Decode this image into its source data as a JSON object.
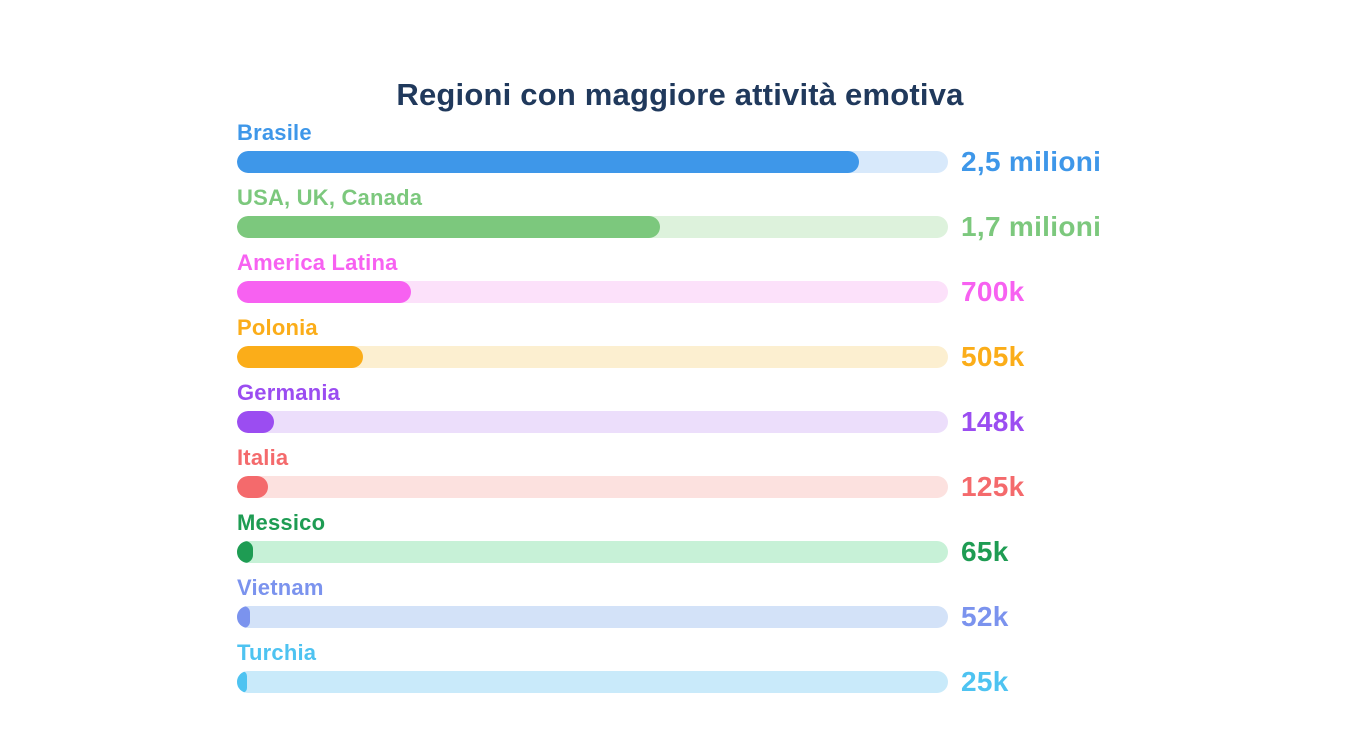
{
  "page": {
    "background": "#ffffff"
  },
  "chart_data": {
    "type": "bar",
    "orientation": "horizontal",
    "title": "Regioni con maggiore attività emotiva",
    "title_color": "#20395c",
    "xlabel": "",
    "ylabel": "",
    "grid": false,
    "legend_position": "none",
    "scale_max": 2860000,
    "min_fill_percent": 1.4,
    "categories": [
      "Brasile",
      "USA, UK, Canada",
      "America Latina",
      "Polonia",
      "Germania",
      "Italia",
      "Messico",
      "Vietnam",
      "Turchia"
    ],
    "values": [
      2500000,
      1700000,
      700000,
      505000,
      148000,
      125000,
      65000,
      52000,
      25000
    ],
    "rows": [
      {
        "label": "Brasile",
        "value": 2500000,
        "value_label": "2,5 milioni",
        "color": "#3e97e9",
        "track_color": "#d8e9fb"
      },
      {
        "label": "USA, UK, Canada",
        "value": 1700000,
        "value_label": "1,7 milioni",
        "color": "#7cc87d",
        "track_color": "#ddf2dc"
      },
      {
        "label": "America Latina",
        "value": 700000,
        "value_label": "700k",
        "color": "#f761f1",
        "track_color": "#fce1fa"
      },
      {
        "label": "Polonia",
        "value": 505000,
        "value_label": "505k",
        "color": "#fbad19",
        "track_color": "#fcefd0"
      },
      {
        "label": "Germania",
        "value": 148000,
        "value_label": "148k",
        "color": "#9b4df1",
        "track_color": "#ecdefb"
      },
      {
        "label": "Italia",
        "value": 125000,
        "value_label": "125k",
        "color": "#f46a6c",
        "track_color": "#fce1df"
      },
      {
        "label": "Messico",
        "value": 65000,
        "value_label": "65k",
        "color": "#1e9c53",
        "track_color": "#c7f1d7"
      },
      {
        "label": "Vietnam",
        "value": 52000,
        "value_label": "52k",
        "color": "#7b93ee",
        "track_color": "#d3e2f8"
      },
      {
        "label": "Turchia",
        "value": 25000,
        "value_label": "25k",
        "color": "#4ec3f1",
        "track_color": "#c9eafa"
      }
    ]
  }
}
